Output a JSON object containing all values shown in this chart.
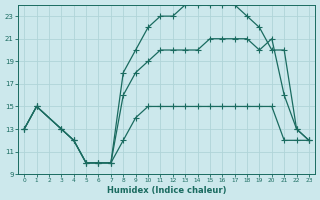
{
  "xlabel": "Humidex (Indice chaleur)",
  "bg_color": "#cce8ec",
  "grid_color": "#b0d4d8",
  "line_color": "#1a6b60",
  "xlim": [
    -0.5,
    23.5
  ],
  "ylim": [
    9,
    24
  ],
  "xticks": [
    0,
    1,
    2,
    3,
    4,
    5,
    6,
    7,
    8,
    9,
    10,
    11,
    12,
    13,
    14,
    15,
    16,
    17,
    18,
    19,
    20,
    21,
    22,
    23
  ],
  "yticks": [
    9,
    11,
    13,
    15,
    17,
    19,
    21,
    23
  ],
  "line1_x": [
    0,
    1,
    3,
    4,
    5,
    6,
    7,
    8,
    9,
    10,
    11,
    12,
    13,
    14,
    15,
    16,
    17,
    18,
    19,
    20,
    21,
    22,
    23
  ],
  "line1_y": [
    13,
    15,
    13,
    12,
    10,
    10,
    10,
    12,
    14,
    15,
    15,
    15,
    15,
    15,
    15,
    15,
    15,
    15,
    15,
    15,
    12,
    12,
    12
  ],
  "line2_x": [
    0,
    1,
    3,
    4,
    5,
    6,
    7,
    8,
    9,
    10,
    11,
    12,
    13,
    14,
    15,
    16,
    17,
    18,
    19,
    20,
    21,
    22,
    23
  ],
  "line2_y": [
    13,
    15,
    13,
    12,
    10,
    10,
    10,
    16,
    18,
    19,
    20,
    20,
    20,
    20,
    21,
    21,
    21,
    21,
    20,
    21,
    16,
    13,
    12
  ],
  "line3_x": [
    0,
    1,
    3,
    4,
    5,
    6,
    7,
    8,
    9,
    10,
    11,
    12,
    13,
    14,
    15,
    16,
    17,
    18,
    19,
    20,
    21,
    22,
    23
  ],
  "line3_y": [
    13,
    15,
    13,
    12,
    10,
    10,
    10,
    18,
    20,
    22,
    23,
    23,
    24,
    24,
    24,
    24,
    24,
    23,
    22,
    20,
    20,
    13,
    12
  ]
}
